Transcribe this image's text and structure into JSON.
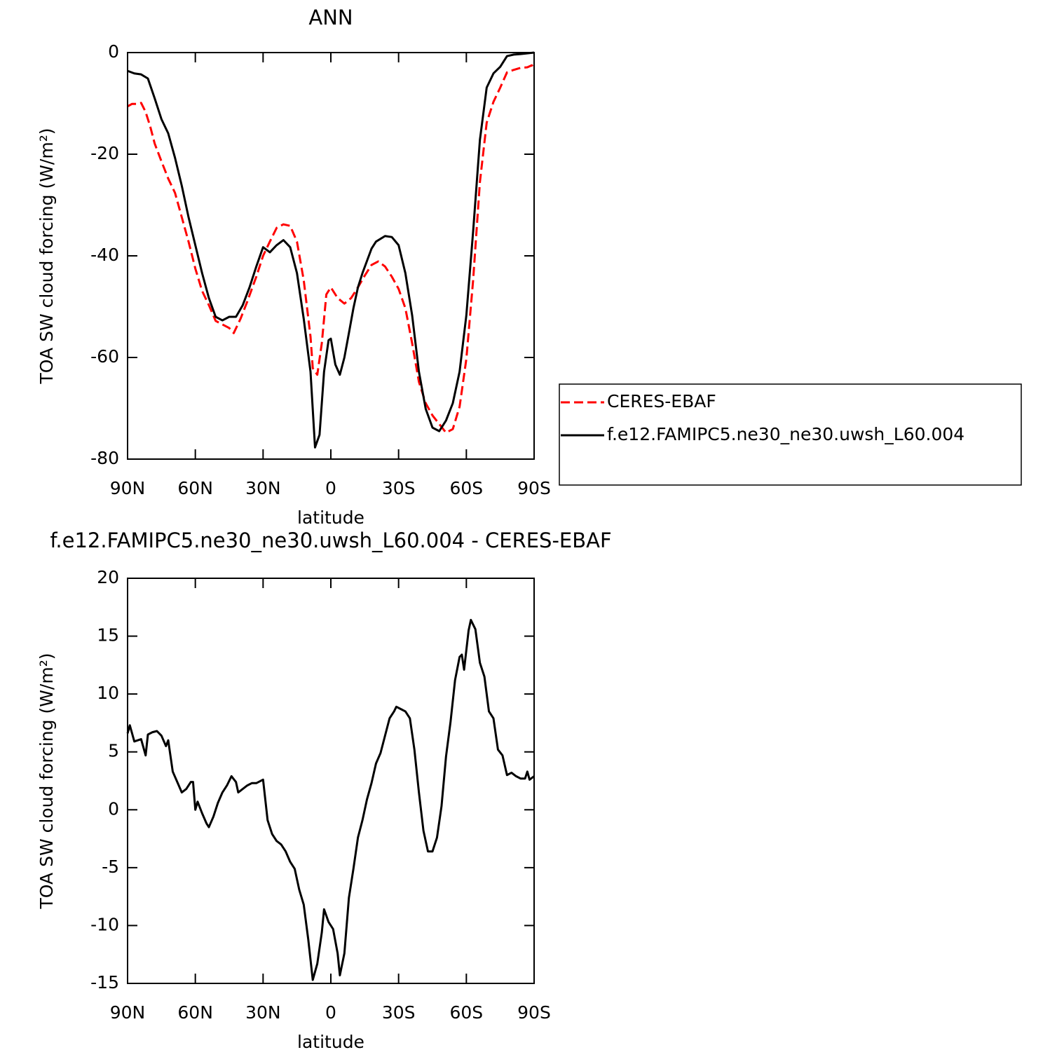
{
  "chart_data": [
    {
      "type": "line",
      "title": "ANN",
      "xlabel": "latitude",
      "ylabel": "TOA SW cloud forcing (W/m²)",
      "xlim": [
        90,
        -90
      ],
      "xticks": [
        {
          "value": 90,
          "label": "90N"
        },
        {
          "value": 60,
          "label": "60N"
        },
        {
          "value": 30,
          "label": "30N"
        },
        0,
        {
          "value": -30,
          "label": "30S"
        },
        {
          "value": -60,
          "label": "60S"
        },
        {
          "value": -90,
          "label": "90S"
        }
      ],
      "ylim": [
        -80,
        0
      ],
      "yticks": [
        0,
        -20,
        -40,
        -60,
        -80
      ],
      "legend": "right",
      "series": [
        {
          "name": "CERES-EBAF",
          "color": "#ff0000",
          "dashed": true,
          "x": [
            90,
            88,
            86,
            84,
            82,
            80,
            78,
            75,
            72,
            69,
            66,
            63,
            60,
            57,
            54,
            51,
            48,
            45,
            43,
            40,
            37,
            33,
            30,
            27,
            24,
            21,
            18,
            15,
            12,
            9,
            8,
            6,
            4,
            2,
            0,
            -3,
            -6,
            -9,
            -12,
            -15,
            -18,
            -21,
            -24,
            -27,
            -30,
            -33,
            -36,
            -39,
            -42,
            -45,
            -48,
            -51,
            -54,
            -57,
            -60,
            -63,
            -66,
            -69,
            -72,
            -75,
            -78,
            -81,
            -84,
            -87,
            -89,
            -90
          ],
          "values": [
            -10.6,
            -10.1,
            -10.1,
            -9.9,
            -11.7,
            -14.5,
            -17.9,
            -21.4,
            -24.8,
            -27.6,
            -32.4,
            -37.2,
            -42.5,
            -46.9,
            -49.7,
            -52.8,
            -53.5,
            -54.2,
            -55.2,
            -52.4,
            -49,
            -44.1,
            -40,
            -37.2,
            -34.5,
            -33.8,
            -34.1,
            -37.2,
            -44.8,
            -55.9,
            -62.1,
            -63.4,
            -57.2,
            -47.6,
            -46.2,
            -48.3,
            -49.4,
            -48.3,
            -46.2,
            -43.9,
            -41.8,
            -41.1,
            -42.1,
            -44.1,
            -46.5,
            -50.3,
            -57.2,
            -64.8,
            -69,
            -71.4,
            -73.1,
            -74.8,
            -74.1,
            -69.7,
            -60.3,
            -44.8,
            -25.5,
            -13.8,
            -9.7,
            -6.9,
            -3.9,
            -3.4,
            -3,
            -2.9,
            -2.5,
            -3.2
          ]
        },
        {
          "name": "f.e12.FAMIPC5.ne30_ne30.uwsh_L60.004",
          "color": "#000000",
          "dashed": false,
          "x": [
            90,
            87,
            84,
            81,
            78,
            75,
            72,
            69,
            66,
            63,
            60,
            57,
            54,
            51,
            48,
            45,
            42,
            39,
            36,
            33,
            30,
            27,
            24,
            21,
            18,
            15,
            12,
            9,
            7,
            5,
            3,
            1,
            0,
            -2,
            -4,
            -6,
            -8,
            -10,
            -12,
            -14,
            -18,
            -20,
            -24,
            -27,
            -30,
            -33,
            -36,
            -39,
            -42,
            -45,
            -48,
            -51,
            -54,
            -57,
            -60,
            -63,
            -66,
            -69,
            -72,
            -75,
            -78,
            -81,
            -84,
            -90
          ],
          "values": [
            -3.6,
            -4.1,
            -4.3,
            -5.1,
            -9,
            -13.1,
            -15.9,
            -20.7,
            -26.2,
            -32.4,
            -37.9,
            -43.4,
            -48.3,
            -52,
            -52.7,
            -52,
            -52,
            -49.7,
            -46.2,
            -42.1,
            -38.3,
            -39.3,
            -37.9,
            -36.9,
            -38.3,
            -43.4,
            -52.4,
            -62.8,
            -77.7,
            -75.2,
            -62.8,
            -56.6,
            -56.3,
            -61.4,
            -63.4,
            -60,
            -55.2,
            -50.3,
            -46.2,
            -43.4,
            -38.6,
            -37.2,
            -36.1,
            -36.3,
            -37.9,
            -43.4,
            -51.7,
            -62.8,
            -70.1,
            -73.8,
            -74.5,
            -72.4,
            -69,
            -62.8,
            -51.7,
            -35.2,
            -17.2,
            -6.9,
            -4.1,
            -2.8,
            -0.7,
            -0.4,
            -0.3,
            0
          ]
        }
      ]
    },
    {
      "type": "line",
      "title": "f.e12.FAMIPC5.ne30_ne30.uwsh_L60.004 - CERES-EBAF",
      "xlabel": "latitude",
      "ylabel": "TOA SW cloud forcing (W/m²)",
      "xlim": [
        90,
        -90
      ],
      "xticks": [
        {
          "value": 90,
          "label": "90N"
        },
        {
          "value": 60,
          "label": "60N"
        },
        {
          "value": 30,
          "label": "30N"
        },
        0,
        {
          "value": -30,
          "label": "30S"
        },
        {
          "value": -60,
          "label": "60S"
        },
        {
          "value": -90,
          "label": "90S"
        }
      ],
      "ylim": [
        -15,
        20
      ],
      "yticks": [
        20,
        15,
        10,
        5,
        0,
        -5,
        -10,
        -15
      ],
      "x": [
        90,
        89,
        87,
        84,
        82,
        81,
        79,
        77,
        75,
        73,
        72,
        70,
        68,
        66,
        64,
        62,
        61,
        60,
        59,
        57,
        55,
        54,
        52,
        50,
        48,
        46,
        44,
        42,
        41,
        39,
        37,
        35,
        33,
        30,
        28,
        26,
        24,
        22,
        20,
        18,
        16,
        14,
        12,
        10,
        8,
        6,
        4,
        3,
        1,
        -1,
        -3,
        -4,
        -6,
        -8,
        -10,
        -12,
        -14,
        -16,
        -18,
        -20,
        -22,
        -24,
        -26,
        -28,
        -29,
        -31,
        -33,
        -35,
        -37,
        -39,
        -41,
        -43,
        -45,
        -47,
        -49,
        -51,
        -53,
        -55,
        -57,
        -58,
        -59,
        -61,
        -62,
        -64,
        -66,
        -68,
        -70,
        -72,
        -74,
        -76,
        -78,
        -80,
        -82,
        -84,
        -86,
        -87,
        -88,
        -90
      ],
      "series": [
        {
          "color": "#000000",
          "dashed": false,
          "values": [
            6.6,
            7.3,
            5.9,
            6.1,
            4.7,
            6.5,
            6.7,
            6.8,
            6.4,
            5.5,
            6,
            3.3,
            2.4,
            1.5,
            1.8,
            2.4,
            2.4,
            0,
            0.7,
            -0.3,
            -1.2,
            -1.5,
            -0.6,
            0.6,
            1.5,
            2.1,
            2.9,
            2.4,
            1.5,
            1.8,
            2.1,
            2.3,
            2.3,
            2.6,
            -0.9,
            -2.1,
            -2.7,
            -3,
            -3.6,
            -4.5,
            -5.1,
            -6.9,
            -8.2,
            -11.2,
            -14.7,
            -13.3,
            -10.6,
            -8.6,
            -9.7,
            -10.3,
            -12.4,
            -14.3,
            -12.4,
            -7.6,
            -5.1,
            -2.4,
            -0.9,
            0.9,
            2.3,
            4,
            4.9,
            6.4,
            7.9,
            8.5,
            8.9,
            8.7,
            8.5,
            7.9,
            5.2,
            1.5,
            -1.8,
            -3.6,
            -3.6,
            -2.4,
            0.3,
            4.6,
            7.6,
            11.2,
            13.2,
            13.4,
            12.1,
            15.5,
            16.4,
            15.6,
            12.7,
            11.5,
            8.5,
            7.9,
            5.2,
            4.7,
            3,
            3.2,
            2.9,
            2.7,
            2.7,
            3.3,
            2.6,
            2.9
          ]
        }
      ]
    }
  ]
}
